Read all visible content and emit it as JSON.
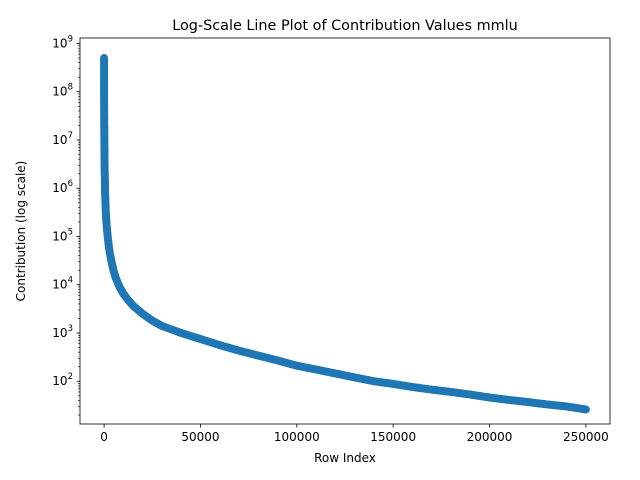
{
  "chart_data": {
    "type": "line",
    "title": "Log-Scale Line Plot of Contribution Values mmlu",
    "xlabel": "Row Index",
    "ylabel": "Contribution (log scale)",
    "y_scale": "log",
    "xlim": [
      -12500,
      262500
    ],
    "ylim": [
      13,
      1300000000
    ],
    "grid": false,
    "legend": "none",
    "x_ticks": [
      0,
      50000,
      100000,
      150000,
      200000,
      250000
    ],
    "x_tick_labels": [
      "0",
      "50000",
      "100000",
      "150000",
      "200000",
      "250000"
    ],
    "y_ticks": [
      100,
      1000,
      10000,
      100000,
      1000000,
      10000000,
      100000000,
      1000000000
    ],
    "y_tick_labels": [
      {
        "base": "10",
        "exp": "2"
      },
      {
        "base": "10",
        "exp": "3"
      },
      {
        "base": "10",
        "exp": "4"
      },
      {
        "base": "10",
        "exp": "5"
      },
      {
        "base": "10",
        "exp": "6"
      },
      {
        "base": "10",
        "exp": "7"
      },
      {
        "base": "10",
        "exp": "8"
      },
      {
        "base": "10",
        "exp": "9"
      }
    ],
    "marker": "circle",
    "color": "#1f77b4",
    "series": [
      {
        "x": [
          0,
          10,
          30,
          60,
          100,
          150,
          200,
          300,
          400,
          500,
          700,
          1000,
          1500,
          2000,
          2500,
          3000,
          4000,
          5000,
          6000,
          8000,
          10000,
          12500,
          15000,
          20000,
          25000,
          30000,
          40000,
          50000,
          60000,
          70000,
          80000,
          90000,
          100000,
          110000,
          120000,
          130000,
          140000,
          150000,
          160000,
          170000,
          180000,
          190000,
          200000,
          210000,
          220000,
          230000,
          240000,
          250000
        ],
        "y": [
          500000000,
          120000000,
          60000000,
          30000000,
          15000000,
          8000000,
          5000000,
          2500000,
          1500000,
          900000,
          500000,
          250000,
          140000,
          90000,
          60000,
          45000,
          28000,
          19000,
          14000,
          9000,
          6500,
          4800,
          3700,
          2500,
          1800,
          1400,
          1000,
          750,
          560,
          430,
          340,
          270,
          210,
          175,
          145,
          120,
          100,
          88,
          76,
          67,
          60,
          53,
          46,
          41,
          37,
          33,
          30,
          26
        ]
      }
    ]
  }
}
